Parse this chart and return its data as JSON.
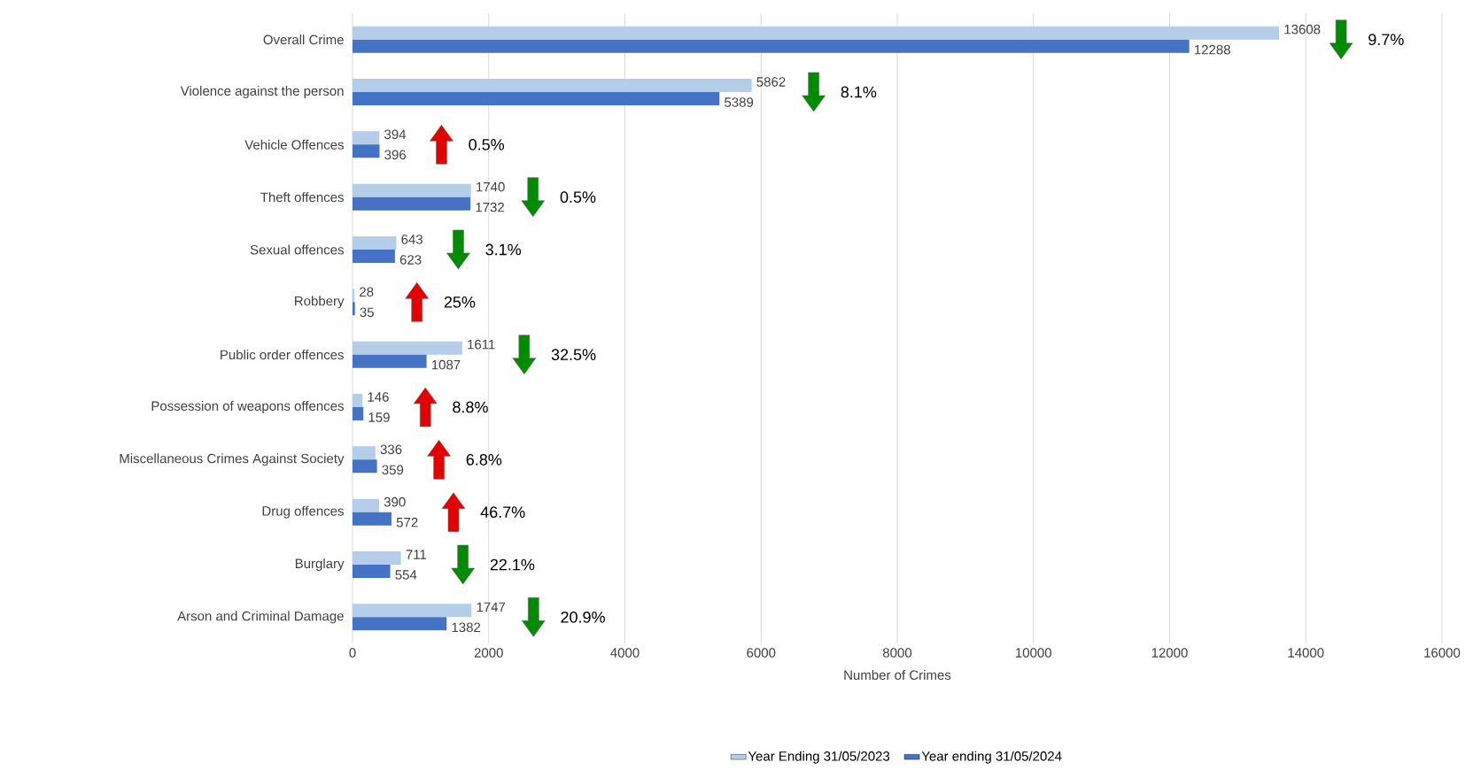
{
  "chart_data": {
    "type": "bar",
    "orientation": "horizontal",
    "categories": [
      "Overall Crime",
      "Violence against the person",
      "Vehicle Offences",
      "Theft offences",
      "Sexual offences",
      "Robbery",
      "Public order offences",
      "Possession of weapons offences",
      "Miscellaneous Crimes Against Society",
      "Drug offences",
      "Burglary",
      "Arson and Criminal Damage"
    ],
    "series": [
      {
        "name": "Year Ending 31/05/2023",
        "color": "#b4cde9",
        "values": [
          13608,
          5862,
          394,
          1740,
          643,
          28,
          1611,
          146,
          336,
          390,
          711,
          1747
        ]
      },
      {
        "name": "Year ending 31/05/2024",
        "color": "#4472c4",
        "values": [
          12288,
          5389,
          396,
          1732,
          623,
          35,
          1087,
          159,
          359,
          572,
          554,
          1382
        ]
      }
    ],
    "xlabel": "Number of Crimes",
    "xlim": [
      0,
      16000
    ],
    "xticks": [
      0,
      2000,
      4000,
      6000,
      8000,
      10000,
      12000,
      14000,
      16000
    ],
    "grid": "x",
    "legend": "bottom",
    "data_labels": true,
    "annotations": [
      "9.7%",
      "8.1%",
      "0.5%",
      "0.5%",
      "3.1%",
      "25%",
      "32.5%",
      "8.8%",
      "6.8%",
      "46.7%",
      "22.1%",
      "20.9%"
    ]
  }
}
